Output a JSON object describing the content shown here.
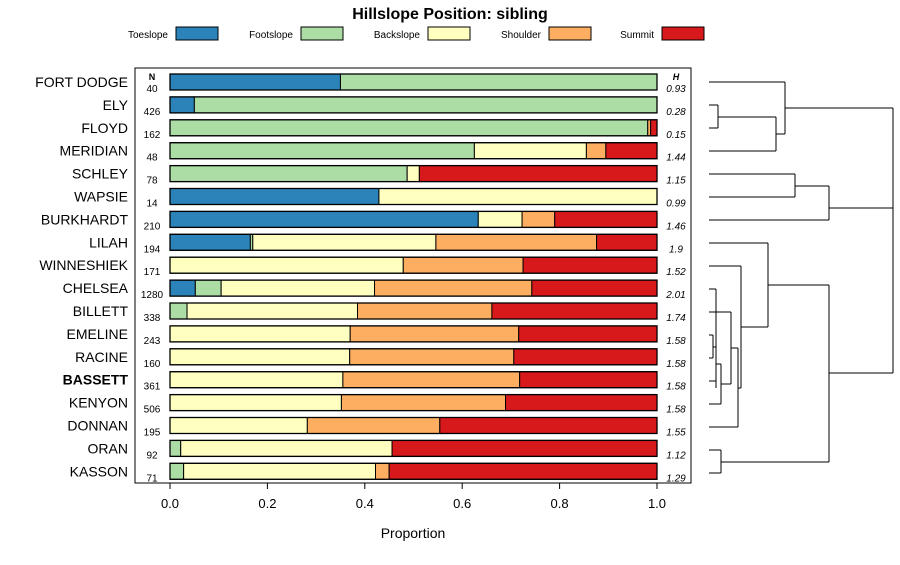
{
  "chart_data": {
    "type": "stacked_bar_horizontal",
    "title": "Hillslope Position: sibling",
    "xlabel": "Proportion",
    "xlim": [
      0,
      1
    ],
    "xticks": [
      0.0,
      0.2,
      0.4,
      0.6,
      0.8,
      1.0
    ],
    "xtick_labels": [
      "0.0",
      "0.2",
      "0.4",
      "0.6",
      "0.8",
      "1.0"
    ],
    "n_header": "N",
    "h_header": "H",
    "highlight": "BASSETT",
    "legend": [
      {
        "name": "Toeslope",
        "color": "#2b83ba"
      },
      {
        "name": "Footslope",
        "color": "#abdda4"
      },
      {
        "name": "Backslope",
        "color": "#ffffbf"
      },
      {
        "name": "Shoulder",
        "color": "#fdae61"
      },
      {
        "name": "Summit",
        "color": "#d7191c"
      }
    ],
    "rows": [
      {
        "name": "FORT DODGE",
        "n": "40",
        "h": "0.93",
        "values": [
          0.35,
          0.65,
          0,
          0,
          0
        ]
      },
      {
        "name": "ELY",
        "n": "426",
        "h": "0.28",
        "values": [
          0.05,
          0.95,
          0,
          0,
          0
        ]
      },
      {
        "name": "FLOYD",
        "n": "162",
        "h": "0.15",
        "values": [
          0,
          0.981,
          0,
          0.006,
          0.013
        ]
      },
      {
        "name": "MERIDIAN",
        "n": "48",
        "h": "1.44",
        "values": [
          0,
          0.625,
          0.23,
          0.04,
          0.105
        ]
      },
      {
        "name": "SCHLEY",
        "n": "78",
        "h": "1.15",
        "values": [
          0,
          0.487,
          0.025,
          0,
          0.488
        ]
      },
      {
        "name": "WAPSIE",
        "n": "14",
        "h": "0.99",
        "values": [
          0.429,
          0,
          0.571,
          0,
          0
        ]
      },
      {
        "name": "BURKHARDT",
        "n": "210",
        "h": "1.46",
        "values": [
          0.633,
          0,
          0.09,
          0.067,
          0.21
        ]
      },
      {
        "name": "LILAH",
        "n": "194",
        "h": "1.9",
        "values": [
          0.165,
          0.005,
          0.376,
          0.33,
          0.124
        ]
      },
      {
        "name": "WINNESHIEK",
        "n": "171",
        "h": "1.52",
        "values": [
          0,
          0,
          0.479,
          0.246,
          0.275
        ]
      },
      {
        "name": "CHELSEA",
        "n": "1280",
        "h": "2.01",
        "values": [
          0.052,
          0.053,
          0.315,
          0.323,
          0.257
        ]
      },
      {
        "name": "BILLETT",
        "n": "338",
        "h": "1.74",
        "values": [
          0,
          0.035,
          0.35,
          0.276,
          0.339
        ]
      },
      {
        "name": "EMELINE",
        "n": "243",
        "h": "1.58",
        "values": [
          0,
          0,
          0.37,
          0.346,
          0.284
        ]
      },
      {
        "name": "RACINE",
        "n": "160",
        "h": "1.58",
        "values": [
          0,
          0,
          0.369,
          0.337,
          0.294
        ]
      },
      {
        "name": "BASSETT",
        "n": "361",
        "h": "1.58",
        "values": [
          0,
          0,
          0.355,
          0.363,
          0.282
        ]
      },
      {
        "name": "KENYON",
        "n": "506",
        "h": "1.58",
        "values": [
          0,
          0,
          0.352,
          0.337,
          0.311
        ]
      },
      {
        "name": "DONNAN",
        "n": "195",
        "h": "1.55",
        "values": [
          0,
          0,
          0.282,
          0.272,
          0.446
        ]
      },
      {
        "name": "ORAN",
        "n": "92",
        "h": "1.12",
        "values": [
          0,
          0.022,
          0.434,
          0,
          0.544
        ]
      },
      {
        "name": "KASSON",
        "n": "71",
        "h": "1.29",
        "values": [
          0,
          0.028,
          0.394,
          0.028,
          0.55
        ]
      }
    ]
  }
}
